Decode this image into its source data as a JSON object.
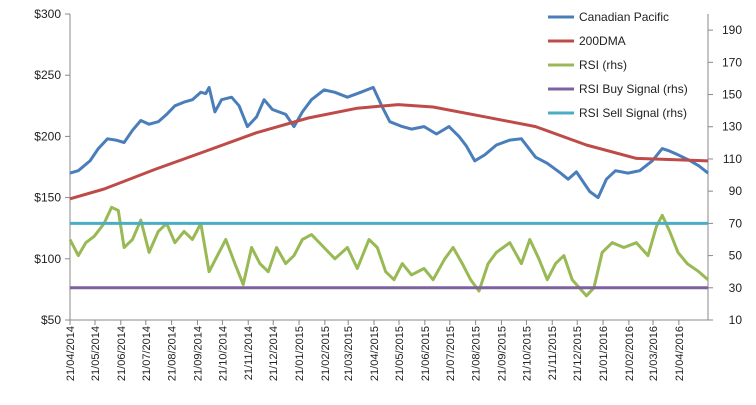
{
  "chart_data": {
    "type": "line",
    "title": "",
    "xlabel": "",
    "ylabel": "",
    "y_left": {
      "range": [
        50,
        300
      ],
      "ticks": [
        50,
        100,
        150,
        200,
        250,
        300
      ],
      "format": "$"
    },
    "y_right": {
      "range": [
        10,
        200
      ],
      "ticks": [
        10,
        30,
        50,
        70,
        90,
        110,
        130,
        150,
        170,
        190
      ]
    },
    "x_range": [
      "2014-04-21",
      "2016-05-26"
    ],
    "x_ticks": [
      "21/04/2014",
      "21/05/2014",
      "21/06/2014",
      "21/07/2014",
      "21/08/2014",
      "21/09/2014",
      "21/10/2014",
      "21/11/2014",
      "21/12/2014",
      "21/01/2015",
      "21/02/2015",
      "21/03/2015",
      "21/04/2015",
      "21/05/2015",
      "21/06/2015",
      "21/07/2015",
      "21/08/2015",
      "21/09/2015",
      "21/10/2015",
      "21/11/2015",
      "21/12/2015",
      "21/01/2016",
      "21/02/2016",
      "21/03/2016",
      "21/04/2016"
    ],
    "grid": false,
    "legend_position": "top-right",
    "series": [
      {
        "name": "Canadian Pacific",
        "axis": "left",
        "color": "#4a7ebb",
        "points": [
          [
            "2014-04-21",
            170
          ],
          [
            "2014-05-01",
            172
          ],
          [
            "2014-05-15",
            180
          ],
          [
            "2014-05-25",
            190
          ],
          [
            "2014-06-05",
            198
          ],
          [
            "2014-06-15",
            197
          ],
          [
            "2014-06-25",
            195
          ],
          [
            "2014-07-05",
            205
          ],
          [
            "2014-07-15",
            213
          ],
          [
            "2014-07-25",
            210
          ],
          [
            "2014-08-05",
            212
          ],
          [
            "2014-08-15",
            218
          ],
          [
            "2014-08-25",
            225
          ],
          [
            "2014-09-05",
            228
          ],
          [
            "2014-09-15",
            230
          ],
          [
            "2014-09-25",
            236
          ],
          [
            "2014-10-01",
            235
          ],
          [
            "2014-10-05",
            240
          ],
          [
            "2014-10-12",
            220
          ],
          [
            "2014-10-20",
            230
          ],
          [
            "2014-11-01",
            232
          ],
          [
            "2014-11-10",
            225
          ],
          [
            "2014-11-20",
            208
          ],
          [
            "2014-12-01",
            216
          ],
          [
            "2014-12-10",
            230
          ],
          [
            "2014-12-20",
            222
          ],
          [
            "2015-01-05",
            218
          ],
          [
            "2015-01-15",
            208
          ],
          [
            "2015-01-25",
            220
          ],
          [
            "2015-02-05",
            230
          ],
          [
            "2015-02-20",
            238
          ],
          [
            "2015-03-05",
            236
          ],
          [
            "2015-03-20",
            232
          ],
          [
            "2015-04-05",
            236
          ],
          [
            "2015-04-20",
            240
          ],
          [
            "2015-05-01",
            224
          ],
          [
            "2015-05-10",
            212
          ],
          [
            "2015-05-25",
            208
          ],
          [
            "2015-06-05",
            206
          ],
          [
            "2015-06-20",
            208
          ],
          [
            "2015-07-05",
            202
          ],
          [
            "2015-07-20",
            208
          ],
          [
            "2015-08-01",
            200
          ],
          [
            "2015-08-10",
            192
          ],
          [
            "2015-08-20",
            180
          ],
          [
            "2015-09-01",
            185
          ],
          [
            "2015-09-15",
            193
          ],
          [
            "2015-10-01",
            197
          ],
          [
            "2015-10-15",
            198
          ],
          [
            "2015-11-01",
            183
          ],
          [
            "2015-11-15",
            178
          ],
          [
            "2015-12-01",
            170
          ],
          [
            "2015-12-10",
            165
          ],
          [
            "2015-12-20",
            171
          ],
          [
            "2016-01-05",
            155
          ],
          [
            "2016-01-15",
            150
          ],
          [
            "2016-01-25",
            165
          ],
          [
            "2016-02-05",
            172
          ],
          [
            "2016-02-20",
            170
          ],
          [
            "2016-03-05",
            172
          ],
          [
            "2016-03-20",
            180
          ],
          [
            "2016-04-01",
            190
          ],
          [
            "2016-04-10",
            188
          ],
          [
            "2016-04-20",
            185
          ],
          [
            "2016-05-05",
            180
          ],
          [
            "2016-05-15",
            176
          ],
          [
            "2016-05-26",
            170
          ]
        ]
      },
      {
        "name": "200DMA",
        "axis": "left",
        "color": "#be4b48",
        "points": [
          [
            "2014-04-21",
            149
          ],
          [
            "2014-06-01",
            157
          ],
          [
            "2014-08-01",
            173
          ],
          [
            "2014-10-01",
            188
          ],
          [
            "2014-12-01",
            203
          ],
          [
            "2015-02-01",
            215
          ],
          [
            "2015-04-01",
            223
          ],
          [
            "2015-05-20",
            226
          ],
          [
            "2015-07-01",
            224
          ],
          [
            "2015-09-01",
            216
          ],
          [
            "2015-11-01",
            208
          ],
          [
            "2016-01-01",
            193
          ],
          [
            "2016-03-01",
            182
          ],
          [
            "2016-05-26",
            180
          ]
        ]
      },
      {
        "name": "RSI (rhs)",
        "axis": "right",
        "color": "#98b954",
        "points": [
          [
            "2014-04-21",
            60
          ],
          [
            "2014-05-01",
            50
          ],
          [
            "2014-05-10",
            58
          ],
          [
            "2014-05-20",
            62
          ],
          [
            "2014-06-01",
            70
          ],
          [
            "2014-06-10",
            80
          ],
          [
            "2014-06-18",
            78
          ],
          [
            "2014-06-25",
            55
          ],
          [
            "2014-07-05",
            60
          ],
          [
            "2014-07-15",
            72
          ],
          [
            "2014-07-25",
            52
          ],
          [
            "2014-08-05",
            65
          ],
          [
            "2014-08-15",
            70
          ],
          [
            "2014-08-25",
            58
          ],
          [
            "2014-09-05",
            65
          ],
          [
            "2014-09-15",
            60
          ],
          [
            "2014-09-25",
            70
          ],
          [
            "2014-10-05",
            40
          ],
          [
            "2014-10-15",
            50
          ],
          [
            "2014-10-25",
            60
          ],
          [
            "2014-11-05",
            45
          ],
          [
            "2014-11-15",
            32
          ],
          [
            "2014-11-25",
            55
          ],
          [
            "2014-12-05",
            45
          ],
          [
            "2014-12-15",
            40
          ],
          [
            "2014-12-25",
            55
          ],
          [
            "2015-01-05",
            45
          ],
          [
            "2015-01-15",
            50
          ],
          [
            "2015-01-25",
            60
          ],
          [
            "2015-02-05",
            63
          ],
          [
            "2015-02-20",
            55
          ],
          [
            "2015-03-05",
            48
          ],
          [
            "2015-03-20",
            55
          ],
          [
            "2015-04-01",
            42
          ],
          [
            "2015-04-15",
            60
          ],
          [
            "2015-04-25",
            55
          ],
          [
            "2015-05-05",
            40
          ],
          [
            "2015-05-15",
            35
          ],
          [
            "2015-05-25",
            45
          ],
          [
            "2015-06-05",
            38
          ],
          [
            "2015-06-20",
            42
          ],
          [
            "2015-07-01",
            35
          ],
          [
            "2015-07-15",
            48
          ],
          [
            "2015-07-25",
            55
          ],
          [
            "2015-08-05",
            45
          ],
          [
            "2015-08-15",
            35
          ],
          [
            "2015-08-25",
            28
          ],
          [
            "2015-09-05",
            45
          ],
          [
            "2015-09-15",
            52
          ],
          [
            "2015-10-01",
            58
          ],
          [
            "2015-10-15",
            45
          ],
          [
            "2015-10-25",
            60
          ],
          [
            "2015-11-05",
            48
          ],
          [
            "2015-11-15",
            35
          ],
          [
            "2015-11-25",
            45
          ],
          [
            "2015-12-05",
            50
          ],
          [
            "2015-12-15",
            35
          ],
          [
            "2016-01-01",
            25
          ],
          [
            "2016-01-10",
            30
          ],
          [
            "2016-01-20",
            52
          ],
          [
            "2016-02-01",
            58
          ],
          [
            "2016-02-15",
            55
          ],
          [
            "2016-03-01",
            58
          ],
          [
            "2016-03-15",
            50
          ],
          [
            "2016-03-25",
            68
          ],
          [
            "2016-04-01",
            75
          ],
          [
            "2016-04-10",
            65
          ],
          [
            "2016-04-20",
            52
          ],
          [
            "2016-05-01",
            45
          ],
          [
            "2016-05-15",
            40
          ],
          [
            "2016-05-26",
            35
          ]
        ]
      },
      {
        "name": "RSI Buy Signal (rhs)",
        "axis": "right",
        "color": "#7d60a0",
        "points": [
          [
            "2014-04-21",
            30
          ],
          [
            "2016-05-26",
            30
          ]
        ]
      },
      {
        "name": "RSI Sell Signal (rhs)",
        "axis": "right",
        "color": "#4bacc6",
        "points": [
          [
            "2014-04-21",
            70
          ],
          [
            "2016-05-26",
            70
          ]
        ]
      }
    ]
  }
}
